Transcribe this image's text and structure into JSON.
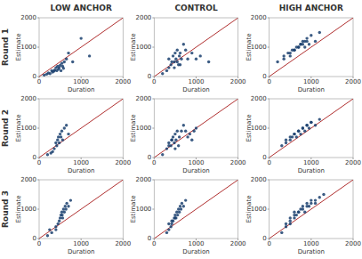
{
  "col_labels": [
    "LOW ANCHOR",
    "CONTROL",
    "HIGH ANCHOR"
  ],
  "row_labels": [
    "Round 1",
    "Round 2",
    "Round 3"
  ],
  "chart_data": [
    {
      "type": "scatter",
      "xlabel": "Duration",
      "ylabel": "Estimate",
      "xlim": [
        0,
        2000
      ],
      "ylim": [
        0,
        2000
      ],
      "xticks": [
        0,
        1000,
        2000
      ],
      "yticks": [
        0,
        1000,
        2000
      ],
      "series": [
        {
          "type": "scatter",
          "color": "#1a3f6f",
          "x": [
            120,
            180,
            220,
            260,
            300,
            320,
            350,
            370,
            400,
            420,
            440,
            460,
            480,
            500,
            520,
            540,
            560,
            580,
            600,
            650,
            700,
            800,
            1000,
            1200
          ],
          "values": [
            50,
            80,
            120,
            100,
            200,
            150,
            180,
            220,
            300,
            200,
            350,
            250,
            300,
            380,
            200,
            450,
            350,
            280,
            500,
            600,
            800,
            500,
            1300,
            700
          ]
        },
        {
          "type": "line",
          "color": "#b03030",
          "x": [
            0,
            2000
          ],
          "values": [
            0,
            2000
          ]
        }
      ]
    },
    {
      "type": "scatter",
      "xlabel": "Duration",
      "ylabel": "Estimate",
      "xlim": [
        0,
        2000
      ],
      "ylim": [
        0,
        2000
      ],
      "xticks": [
        0,
        1000,
        2000
      ],
      "yticks": [
        0,
        1000,
        2000
      ],
      "series": [
        {
          "type": "scatter",
          "color": "#1a3f6f",
          "x": [
            200,
            300,
            350,
            400,
            450,
            480,
            500,
            520,
            550,
            580,
            600,
            620,
            650,
            700,
            750,
            800,
            900,
            1000,
            1100,
            1300,
            350,
            420,
            480,
            550,
            620
          ],
          "values": [
            100,
            200,
            600,
            400,
            700,
            500,
            800,
            600,
            900,
            400,
            700,
            800,
            600,
            1100,
            900,
            600,
            800,
            600,
            700,
            500,
            300,
            500,
            300,
            500,
            400
          ]
        },
        {
          "type": "line",
          "color": "#b03030",
          "x": [
            0,
            2000
          ],
          "values": [
            0,
            2000
          ]
        }
      ]
    },
    {
      "type": "scatter",
      "xlabel": "Duration",
      "ylabel": "Estimate",
      "xlim": [
        0,
        2000
      ],
      "ylim": [
        0,
        2000
      ],
      "xticks": [
        0,
        1000,
        2000
      ],
      "yticks": [
        0,
        1000,
        2000
      ],
      "series": [
        {
          "type": "scatter",
          "color": "#1a3f6f",
          "x": [
            200,
            350,
            500,
            600,
            700,
            750,
            800,
            850,
            900,
            950,
            1000,
            1100,
            1200,
            350,
            450,
            550,
            650,
            750,
            850,
            500,
            600,
            700,
            800,
            900
          ],
          "values": [
            500,
            700,
            800,
            900,
            1000,
            1100,
            1200,
            1000,
            1300,
            1100,
            1400,
            1200,
            1500,
            600,
            800,
            900,
            1000,
            1100,
            1200,
            700,
            900,
            1000,
            1100,
            1200
          ]
        },
        {
          "type": "line",
          "color": "#b03030",
          "x": [
            0,
            2000
          ],
          "values": [
            0,
            2000
          ]
        }
      ]
    },
    {
      "type": "scatter",
      "xlabel": "Duration",
      "ylabel": "Estimate",
      "xlim": [
        0,
        2000
      ],
      "ylim": [
        0,
        2000
      ],
      "xticks": [
        0,
        1000,
        2000
      ],
      "yticks": [
        0,
        1000,
        2000
      ],
      "series": [
        {
          "type": "scatter",
          "color": "#1a3f6f",
          "x": [
            200,
            280,
            320,
            360,
            400,
            420,
            440,
            460,
            480,
            500,
            520,
            540,
            560,
            600,
            650,
            700
          ],
          "values": [
            100,
            150,
            200,
            300,
            500,
            400,
            600,
            700,
            500,
            800,
            700,
            900,
            600,
            1000,
            1100,
            800
          ]
        },
        {
          "type": "line",
          "color": "#b03030",
          "x": [
            0,
            2000
          ],
          "values": [
            0,
            2000
          ]
        }
      ]
    },
    {
      "type": "scatter",
      "xlabel": "Duration",
      "ylabel": "Estimate",
      "xlim": [
        0,
        2000
      ],
      "ylim": [
        0,
        2000
      ],
      "xticks": [
        0,
        1000,
        2000
      ],
      "yticks": [
        0,
        1000,
        2000
      ],
      "series": [
        {
          "type": "scatter",
          "color": "#1a3f6f",
          "x": [
            200,
            300,
            350,
            400,
            420,
            450,
            480,
            500,
            520,
            550,
            580,
            600,
            650,
            700,
            750,
            800,
            850,
            900,
            950,
            1000,
            350,
            420,
            500
          ],
          "values": [
            100,
            300,
            500,
            400,
            600,
            700,
            500,
            800,
            600,
            900,
            400,
            700,
            900,
            1100,
            900,
            700,
            800,
            600,
            900,
            1000,
            400,
            600,
            300
          ]
        },
        {
          "type": "line",
          "color": "#b03030",
          "x": [
            0,
            2000
          ],
          "values": [
            0,
            2000
          ]
        }
      ]
    },
    {
      "type": "scatter",
      "xlabel": "Duration",
      "ylabel": "Estimate",
      "xlim": [
        0,
        2000
      ],
      "ylim": [
        0,
        2000
      ],
      "xticks": [
        0,
        1000,
        2000
      ],
      "yticks": [
        0,
        1000,
        2000
      ],
      "series": [
        {
          "type": "scatter",
          "color": "#1a3f6f",
          "x": [
            300,
            400,
            500,
            550,
            600,
            650,
            700,
            750,
            800,
            850,
            900,
            950,
            1000,
            1100,
            1200,
            400,
            500,
            600,
            700,
            800,
            900,
            1000
          ],
          "values": [
            400,
            500,
            600,
            700,
            800,
            700,
            900,
            800,
            1000,
            900,
            1100,
            1000,
            1200,
            1100,
            1300,
            600,
            700,
            800,
            900,
            1000,
            1100,
            1200
          ]
        },
        {
          "type": "line",
          "color": "#b03030",
          "x": [
            0,
            2000
          ],
          "values": [
            0,
            2000
          ]
        }
      ]
    },
    {
      "type": "scatter",
      "xlabel": "Duration",
      "ylabel": "Estimate",
      "xlim": [
        0,
        2000
      ],
      "ylim": [
        0,
        2000
      ],
      "xticks": [
        0,
        1000,
        2000
      ],
      "yticks": [
        0,
        1000,
        2000
      ],
      "series": [
        {
          "type": "scatter",
          "color": "#1a3f6f",
          "x": [
            300,
            400,
            450,
            500,
            520,
            540,
            560,
            580,
            600,
            620,
            640,
            660,
            700,
            750,
            400,
            480,
            550,
            200,
            250
          ],
          "values": [
            200,
            300,
            500,
            700,
            800,
            900,
            700,
            1000,
            900,
            1100,
            1000,
            1200,
            1100,
            1300,
            400,
            600,
            800,
            100,
            300
          ]
        },
        {
          "type": "line",
          "color": "#b03030",
          "x": [
            0,
            2000
          ],
          "values": [
            0,
            2000
          ]
        }
      ]
    },
    {
      "type": "scatter",
      "xlabel": "Duration",
      "ylabel": "Estimate",
      "xlim": [
        0,
        2000
      ],
      "ylim": [
        0,
        2000
      ],
      "xticks": [
        0,
        1000,
        2000
      ],
      "yticks": [
        0,
        1000,
        2000
      ],
      "series": [
        {
          "type": "scatter",
          "color": "#1a3f6f",
          "x": [
            300,
            350,
            400,
            420,
            450,
            480,
            500,
            520,
            540,
            560,
            580,
            600,
            620,
            640,
            660,
            700,
            750,
            350,
            420,
            500
          ],
          "values": [
            200,
            300,
            400,
            500,
            600,
            700,
            800,
            700,
            900,
            800,
            1000,
            900,
            1100,
            1000,
            1200,
            1100,
            1300,
            500,
            600,
            700
          ]
        },
        {
          "type": "line",
          "color": "#b03030",
          "x": [
            0,
            2000
          ],
          "values": [
            0,
            2000
          ]
        }
      ]
    },
    {
      "type": "scatter",
      "xlabel": "Duration",
      "ylabel": "Estimate",
      "xlim": [
        0,
        2000
      ],
      "ylim": [
        0,
        2000
      ],
      "xticks": [
        0,
        1000,
        2000
      ],
      "yticks": [
        0,
        1000,
        2000
      ],
      "series": [
        {
          "type": "scatter",
          "color": "#1a3f6f",
          "x": [
            300,
            400,
            500,
            600,
            650,
            700,
            750,
            800,
            850,
            900,
            950,
            1000,
            1100,
            1200,
            1300,
            400,
            500,
            600,
            700,
            800,
            900,
            1000,
            1100,
            500,
            600
          ],
          "values": [
            200,
            400,
            500,
            700,
            800,
            900,
            1000,
            1100,
            900,
            1200,
            1100,
            1300,
            1200,
            1400,
            1500,
            500,
            600,
            800,
            900,
            1000,
            1100,
            1200,
            1300,
            700,
            900
          ]
        },
        {
          "type": "line",
          "color": "#b03030",
          "x": [
            0,
            2000
          ],
          "values": [
            0,
            2000
          ]
        }
      ]
    }
  ]
}
